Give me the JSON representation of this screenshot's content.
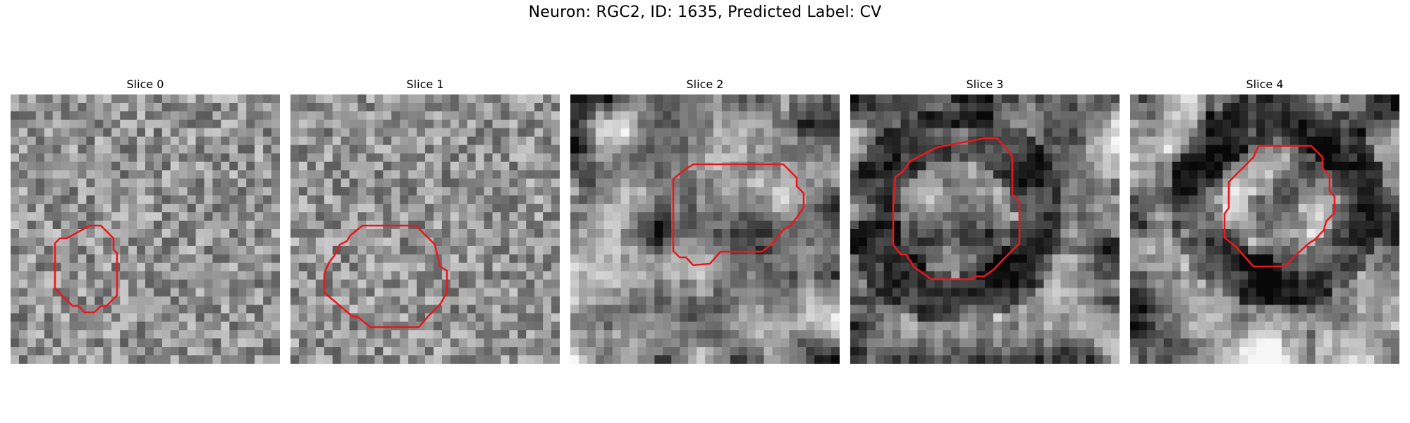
{
  "figure": {
    "title": "Neuron: RGC2, ID: 1635, Predicted Label: CV"
  },
  "panels": [
    {
      "title": "Slice 0",
      "seed": 11,
      "style": "noise"
    },
    {
      "title": "Slice 1",
      "seed": 23,
      "style": "noise"
    },
    {
      "title": "Slice 2",
      "seed": 37,
      "style": "smooth"
    },
    {
      "title": "Slice 3",
      "seed": 53,
      "style": "dark-ring"
    },
    {
      "title": "Slice 4",
      "seed": 71,
      "style": "dark-ring"
    }
  ],
  "colors": {
    "roi_outline": "#e8191c"
  }
}
